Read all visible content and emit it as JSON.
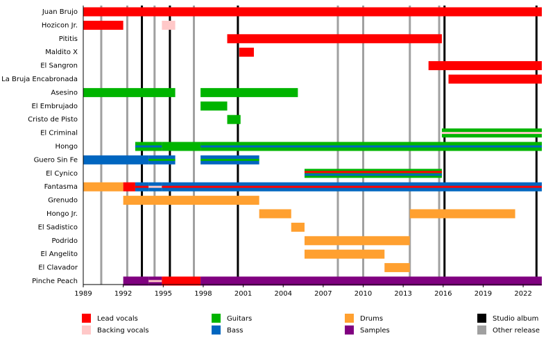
{
  "chart_data": {
    "type": "timeline",
    "xlim": [
      1989,
      2023.4
    ],
    "xticks": [
      1989,
      1992,
      1995,
      1998,
      2001,
      2004,
      2007,
      2010,
      2013,
      2016,
      2019,
      2022
    ],
    "roles": [
      {
        "name": "Lead vocals",
        "color": "#ff0000"
      },
      {
        "name": "Backing vocals",
        "color": "#ffc8c8"
      },
      {
        "name": "Guitars",
        "color": "#00b400"
      },
      {
        "name": "Bass",
        "color": "#0066c0"
      },
      {
        "name": "Drums",
        "color": "#ffa030"
      },
      {
        "name": "Samples",
        "color": "#800080"
      }
    ],
    "releases": [
      {
        "name": "Studio album",
        "color": "#000000",
        "years": [
          1993.4,
          1995.5,
          2000.6,
          2016.1,
          2023.0
        ]
      },
      {
        "name": "Other release",
        "color": "#a0a0a0",
        "years": [
          1990.35,
          1992.3,
          1994.35,
          1997.3,
          2008.1,
          2010.0,
          2013.5,
          2015.7
        ]
      }
    ],
    "members": [
      {
        "name": "Juan Brujo",
        "bars": [
          {
            "roles": [
              0
            ],
            "start": 1989,
            "end": 2023.4
          }
        ]
      },
      {
        "name": "Hozicon Jr.",
        "bars": [
          {
            "roles": [
              0
            ],
            "start": 1989,
            "end": 1992
          },
          {
            "roles": [
              1
            ],
            "start": 1994.9,
            "end": 1995.9
          }
        ]
      },
      {
        "name": "Pititis",
        "bars": [
          {
            "roles": [
              0
            ],
            "start": 1999.8,
            "end": 2015.9
          }
        ]
      },
      {
        "name": "Maldito X",
        "bars": [
          {
            "roles": [
              0
            ],
            "start": 2000.7,
            "end": 2001.8
          }
        ]
      },
      {
        "name": "El Sangron",
        "bars": [
          {
            "roles": [
              0
            ],
            "start": 2014.9,
            "end": 2023.4
          }
        ]
      },
      {
        "name": "La Bruja Encabronada",
        "bars": [
          {
            "roles": [
              0
            ],
            "start": 2016.4,
            "end": 2023.4
          }
        ]
      },
      {
        "name": "Asesino",
        "bars": [
          {
            "roles": [
              2
            ],
            "start": 1989,
            "end": 1995.9
          },
          {
            "roles": [
              2
            ],
            "start": 1997.8,
            "end": 2005.1
          }
        ]
      },
      {
        "name": "El Embrujado",
        "bars": [
          {
            "roles": [
              2
            ],
            "start": 1997.8,
            "end": 1999.8
          }
        ]
      },
      {
        "name": "Cristo de Pisto",
        "bars": [
          {
            "roles": [
              2
            ],
            "start": 1999.8,
            "end": 2000.8
          }
        ]
      },
      {
        "name": "El Criminal",
        "bars": [
          {
            "roles": [
              2,
              1
            ],
            "start": 2015.9,
            "end": 2023.4
          }
        ]
      },
      {
        "name": "Hongo",
        "bars": [
          {
            "roles": [
              2,
              3
            ],
            "start": 1992.9,
            "end": 1994.9
          },
          {
            "roles": [
              2
            ],
            "start": 1994.9,
            "end": 1997.8
          },
          {
            "roles": [
              2,
              3
            ],
            "start": 1997.8,
            "end": 2023.4
          }
        ]
      },
      {
        "name": "Guero Sin Fe",
        "bars": [
          {
            "roles": [
              3
            ],
            "start": 1989,
            "end": 1993.9
          },
          {
            "roles": [
              3,
              2
            ],
            "start": 1993.9,
            "end": 1995.9
          },
          {
            "roles": [
              3,
              2
            ],
            "start": 1997.8,
            "end": 2002.2
          }
        ]
      },
      {
        "name": "El Cynico",
        "bars": [
          {
            "roles": [
              2,
              0,
              3
            ],
            "start": 2005.6,
            "end": 2015.9
          }
        ]
      },
      {
        "name": "Fantasma",
        "bars": [
          {
            "roles": [
              4
            ],
            "start": 1989,
            "end": 1992
          },
          {
            "roles": [
              0
            ],
            "start": 1992,
            "end": 1992.9
          },
          {
            "roles": [
              3,
              0
            ],
            "start": 1992.9,
            "end": 1993.9
          },
          {
            "roles": [
              3,
              1
            ],
            "start": 1993.9,
            "end": 1994.9
          },
          {
            "roles": [
              3,
              0
            ],
            "start": 1994.9,
            "end": 2023.4
          }
        ]
      },
      {
        "name": "Grenudo",
        "bars": [
          {
            "roles": [
              4
            ],
            "start": 1992,
            "end": 2002.2
          }
        ]
      },
      {
        "name": "Hongo Jr.",
        "bars": [
          {
            "roles": [
              4
            ],
            "start": 2002.2,
            "end": 2004.6
          },
          {
            "roles": [
              4
            ],
            "start": 2013.5,
            "end": 2021.4
          }
        ]
      },
      {
        "name": "El Sadistico",
        "bars": [
          {
            "roles": [
              4
            ],
            "start": 2004.6,
            "end": 2005.6
          }
        ]
      },
      {
        "name": "Podrido",
        "bars": [
          {
            "roles": [
              4
            ],
            "start": 2005.6,
            "end": 2013.5
          }
        ]
      },
      {
        "name": "El Angelito",
        "bars": [
          {
            "roles": [
              4
            ],
            "start": 2005.6,
            "end": 2011.6
          }
        ]
      },
      {
        "name": "El Clavador",
        "bars": [
          {
            "roles": [
              4
            ],
            "start": 2011.6,
            "end": 2013.5
          }
        ]
      },
      {
        "name": "Pinche Peach",
        "bars": [
          {
            "roles": [
              5
            ],
            "start": 1992,
            "end": 1993.9
          },
          {
            "roles": [
              5,
              1
            ],
            "start": 1993.9,
            "end": 1994.9
          },
          {
            "roles": [
              0
            ],
            "start": 1994.9,
            "end": 1997.8
          },
          {
            "roles": [
              5
            ],
            "start": 1997.8,
            "end": 2023.4
          }
        ]
      }
    ]
  }
}
